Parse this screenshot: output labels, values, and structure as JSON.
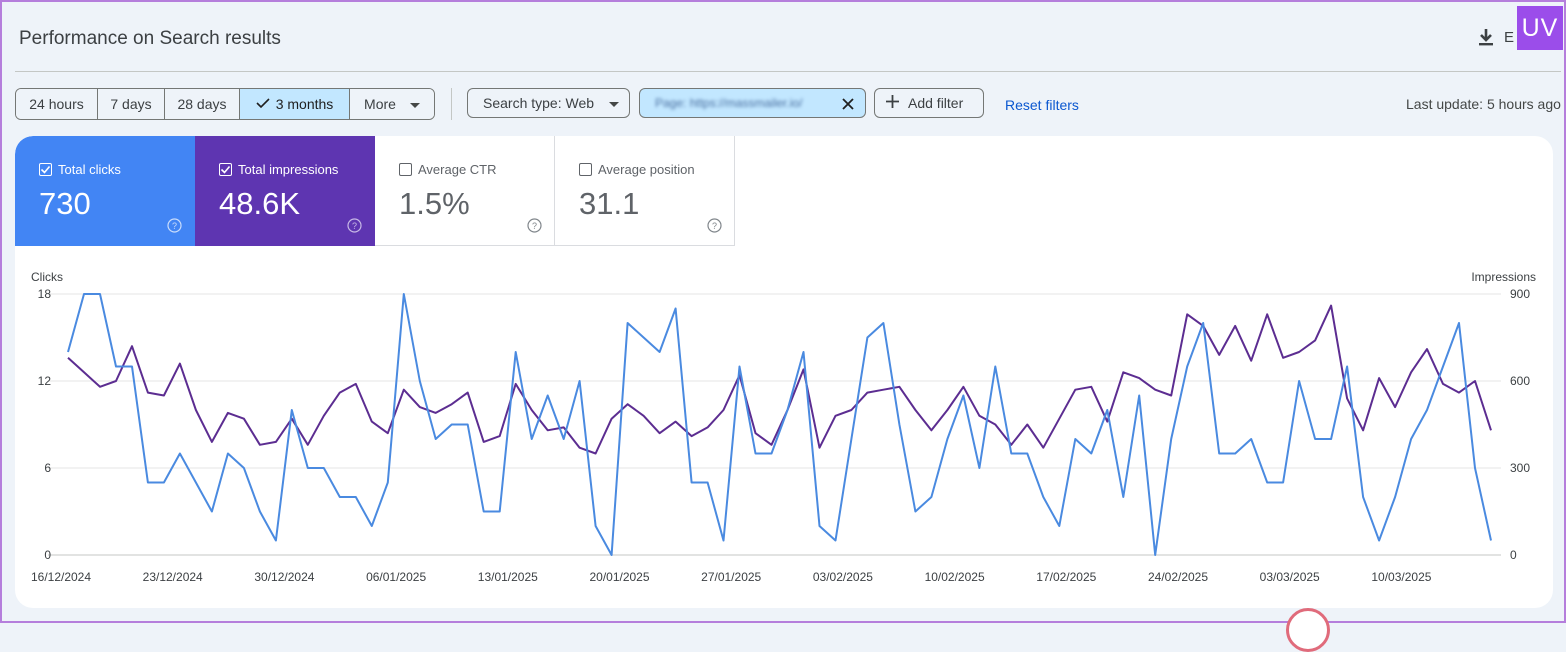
{
  "header": {
    "title": "Performance on Search results",
    "export_label": "E",
    "badge": "UV"
  },
  "date_ranges": [
    {
      "label": "24 hours",
      "selected": false
    },
    {
      "label": "7 days",
      "selected": false
    },
    {
      "label": "28 days",
      "selected": false
    },
    {
      "label": "3 months",
      "selected": true
    },
    {
      "label": "More",
      "selected": false
    }
  ],
  "filters": {
    "search_type": "Search type: Web",
    "page": "Page: https://massmailer.io/",
    "add_filter": "Add filter",
    "reset": "Reset filters",
    "last_update": "Last update: 5 hours ago"
  },
  "metrics": [
    {
      "label": "Total clicks",
      "value": "730",
      "checked": true,
      "color": "#4285f4"
    },
    {
      "label": "Total impressions",
      "value": "48.6K",
      "checked": true,
      "color": "#5e35b1"
    },
    {
      "label": "Average CTR",
      "value": "1.5%",
      "checked": false
    },
    {
      "label": "Average position",
      "value": "31.1",
      "checked": false
    }
  ],
  "chart_data": {
    "type": "line",
    "left_axis_label": "Clicks",
    "right_axis_label": "Impressions",
    "left_ticks": [
      "18",
      "12",
      "6",
      "0"
    ],
    "right_ticks": [
      "900",
      "600",
      "300",
      "0"
    ],
    "ylim_left": [
      0,
      18
    ],
    "ylim_right": [
      0,
      900
    ],
    "x_ticks": [
      "16/12/2024",
      "23/12/2024",
      "30/12/2024",
      "06/01/2025",
      "13/01/2025",
      "20/01/2025",
      "27/01/2025",
      "03/02/2025",
      "10/02/2025",
      "17/02/2025",
      "24/02/2025",
      "03/03/2025",
      "10/03/2025"
    ],
    "grid": true,
    "series": [
      {
        "name": "Clicks",
        "axis": "left",
        "color": "#4a8ae0",
        "values": [
          14,
          18,
          18,
          13,
          13,
          5,
          5,
          7,
          5,
          3,
          7,
          6,
          3,
          1,
          10,
          6,
          6,
          4,
          4,
          2,
          5,
          18,
          12,
          8,
          9,
          9,
          3,
          3,
          14,
          8,
          11,
          8,
          12,
          2,
          0,
          16,
          15,
          14,
          17,
          5,
          5,
          1,
          13,
          7,
          7,
          10,
          14,
          2,
          1,
          8,
          15,
          16,
          9,
          3,
          4,
          8,
          11,
          6,
          13,
          7,
          7,
          4,
          2,
          8,
          7,
          10,
          4,
          11,
          0,
          8,
          13,
          16,
          7,
          7,
          8,
          5,
          5,
          12,
          8,
          8,
          13,
          4,
          1,
          4,
          8,
          10,
          13,
          16,
          6,
          1
        ]
      },
      {
        "name": "Impressions",
        "axis": "right",
        "color": "#5c2d91",
        "values": [
          680,
          630,
          580,
          600,
          720,
          560,
          550,
          660,
          500,
          390,
          490,
          470,
          380,
          390,
          470,
          380,
          480,
          560,
          590,
          460,
          420,
          570,
          510,
          490,
          520,
          560,
          390,
          410,
          590,
          500,
          430,
          440,
          370,
          350,
          470,
          520,
          480,
          420,
          460,
          410,
          440,
          500,
          620,
          420,
          380,
          500,
          640,
          370,
          480,
          500,
          560,
          570,
          580,
          500,
          430,
          500,
          580,
          480,
          450,
          380,
          450,
          370,
          470,
          570,
          580,
          460,
          630,
          610,
          570,
          550,
          830,
          790,
          690,
          790,
          670,
          830,
          680,
          700,
          740,
          860,
          540,
          430,
          610,
          510,
          630,
          710,
          590,
          560,
          600,
          430
        ]
      }
    ]
  }
}
